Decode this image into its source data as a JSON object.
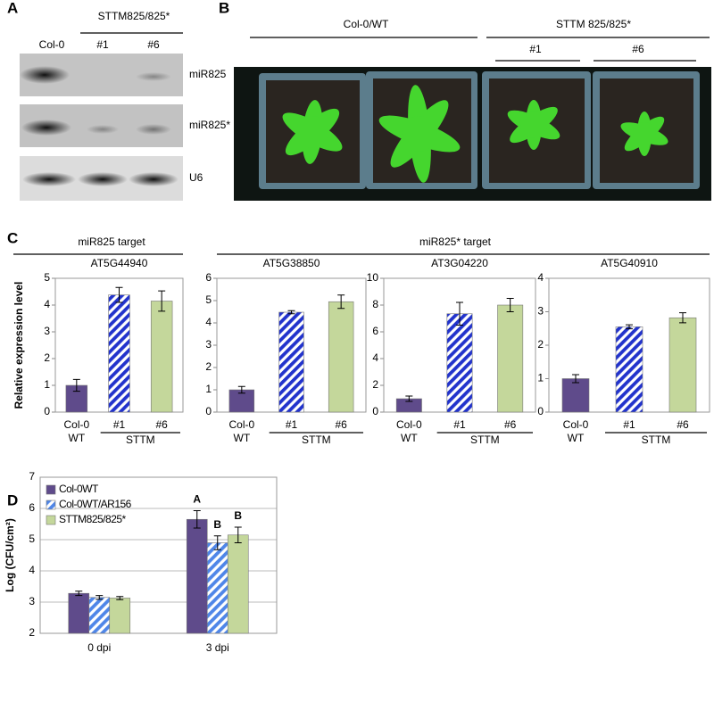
{
  "panel_a": {
    "letter": "A",
    "group": "STTM825/825*",
    "lanes": [
      "Col-0",
      "#1",
      "#6"
    ],
    "blots": [
      "miR825",
      "miR825*",
      "U6"
    ]
  },
  "panel_b": {
    "letter": "B",
    "groups": [
      "Col-0/WT",
      "STTM 825/825*"
    ],
    "lines": [
      "#1",
      "#6"
    ]
  },
  "panel_c": {
    "letter": "C",
    "groups": [
      "miR825 target",
      "miR825* target"
    ]
  },
  "panel_d": {
    "letter": "D"
  },
  "chart_data": [
    {
      "type": "bar",
      "title": "AT5G44940",
      "ylabel": "Relative expression level",
      "categories": [
        "Col-0",
        "#1",
        "#6"
      ],
      "category_groups": [
        "WT",
        "STTM"
      ],
      "values": [
        1.0,
        4.38,
        4.15
      ],
      "errors": [
        0.22,
        0.28,
        0.38
      ],
      "colors": [
        "#5f4b8b",
        "#2233cc",
        "#c4d79b"
      ],
      "hatch": [
        false,
        true,
        false
      ],
      "ylim": [
        0,
        5
      ],
      "yticks": [
        0,
        1,
        2,
        3,
        4,
        5
      ]
    },
    {
      "type": "bar",
      "title": "AT5G38850",
      "categories": [
        "Col-0",
        "#1",
        "#6"
      ],
      "category_groups": [
        "WT",
        "STTM"
      ],
      "values": [
        1.0,
        4.48,
        4.95
      ],
      "errors": [
        0.15,
        0.07,
        0.3
      ],
      "colors": [
        "#5f4b8b",
        "#2233cc",
        "#c4d79b"
      ],
      "hatch": [
        false,
        true,
        false
      ],
      "ylim": [
        0,
        6
      ],
      "yticks": [
        0,
        1,
        2,
        3,
        4,
        5,
        6
      ]
    },
    {
      "type": "bar",
      "title": "AT3G04220",
      "categories": [
        "Col-0",
        "#1",
        "#6"
      ],
      "category_groups": [
        "WT",
        "STTM"
      ],
      "values": [
        1.0,
        7.35,
        8.0
      ],
      "errors": [
        0.2,
        0.85,
        0.5
      ],
      "colors": [
        "#5f4b8b",
        "#2233cc",
        "#c4d79b"
      ],
      "hatch": [
        false,
        true,
        false
      ],
      "ylim": [
        0,
        10
      ],
      "yticks": [
        0,
        2,
        4,
        6,
        8,
        10
      ]
    },
    {
      "type": "bar",
      "title": "AT5G40910",
      "categories": [
        "Col-0",
        "#1",
        "#6"
      ],
      "category_groups": [
        "WT",
        "STTM"
      ],
      "values": [
        1.0,
        2.55,
        2.82
      ],
      "errors": [
        0.12,
        0.06,
        0.15
      ],
      "colors": [
        "#5f4b8b",
        "#2233cc",
        "#c4d79b"
      ],
      "hatch": [
        false,
        true,
        false
      ],
      "ylim": [
        0,
        4
      ],
      "yticks": [
        0,
        1,
        2,
        3,
        4
      ]
    },
    {
      "type": "grouped_bar",
      "ylabel": "Log (CFU/cm²)",
      "categories": [
        "0 dpi",
        "3 dpi"
      ],
      "grid": true,
      "legend": "upper left",
      "ylim": [
        2,
        7
      ],
      "yticks": [
        2,
        3,
        4,
        5,
        6,
        7
      ],
      "series": [
        {
          "name": "Col-0WT",
          "color": "#5f4b8b",
          "hatch": false,
          "values": [
            3.28,
            5.65
          ],
          "errors": [
            0.07,
            0.28
          ],
          "letters": [
            null,
            "A"
          ]
        },
        {
          "name": "Col-0WT/AR156",
          "color": "#4f86e8",
          "hatch": true,
          "values": [
            3.15,
            4.9
          ],
          "errors": [
            0.06,
            0.22
          ],
          "letters": [
            null,
            "B"
          ]
        },
        {
          "name": "STTM825/825*",
          "color": "#c4d79b",
          "hatch": false,
          "values": [
            3.13,
            5.15
          ],
          "errors": [
            0.05,
            0.25
          ],
          "letters": [
            null,
            "B"
          ]
        }
      ]
    }
  ]
}
